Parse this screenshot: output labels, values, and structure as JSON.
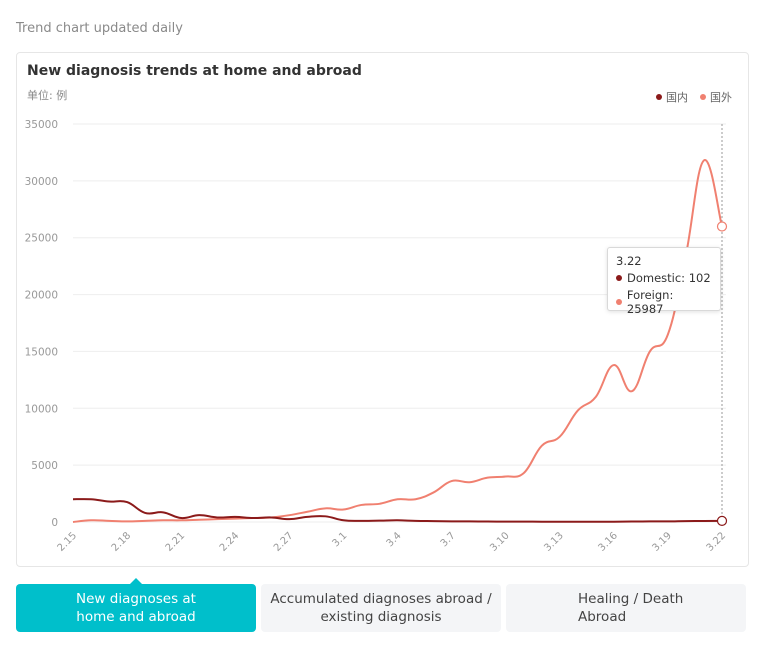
{
  "header": {
    "caption": "Trend chart updated daily"
  },
  "card": {
    "title": "New diagnosis trends at home and abroad",
    "unit": "单位: 例"
  },
  "legend": [
    {
      "label": "国内",
      "color": "#8b1a1a"
    },
    {
      "label": "国外",
      "color": "#f08070"
    }
  ],
  "tooltip": {
    "date": "3.22",
    "domestic_text": "Domestic: 102",
    "foreign_text": "Foreign: 25987",
    "domestic_color": "#8b1a1a",
    "foreign_color": "#f08070"
  },
  "tabs": [
    {
      "label": "New diagnoses at\nhome and abroad",
      "active": true
    },
    {
      "label": "Accumulated diagnoses abroad /\nexisting diagnosis",
      "active": false
    },
    {
      "label": "Healing / Death\nAbroad",
      "active": false
    }
  ],
  "chart_data": {
    "type": "line",
    "title": "New diagnosis trends at home and abroad",
    "ylabel": "单位: 例",
    "ylim": [
      0,
      35000
    ],
    "yticks": [
      0,
      5000,
      10000,
      15000,
      20000,
      25000,
      30000,
      35000
    ],
    "grid": true,
    "legend_position": "top-right",
    "x": [
      "2.15",
      "2.16",
      "2.17",
      "2.18",
      "2.19",
      "2.20",
      "2.21",
      "2.22",
      "2.23",
      "2.24",
      "2.25",
      "2.26",
      "2.27",
      "2.28",
      "2.29",
      "3.1",
      "3.2",
      "3.3",
      "3.4",
      "3.5",
      "3.6",
      "3.7",
      "3.8",
      "3.9",
      "3.10",
      "3.11",
      "3.12",
      "3.13",
      "3.14",
      "3.15",
      "3.16",
      "3.17",
      "3.18",
      "3.19",
      "3.20",
      "3.21",
      "3.22"
    ],
    "xtick_labels": [
      "2.15",
      "2.18",
      "2.21",
      "2.24",
      "2.27",
      "3.1",
      "3.4",
      "3.7",
      "3.10",
      "3.13",
      "3.16",
      "3.19",
      "3.22"
    ],
    "series": [
      {
        "name": "国内",
        "color": "#8b1a1a",
        "values": [
          2000,
          2000,
          1800,
          1750,
          800,
          850,
          350,
          600,
          400,
          450,
          350,
          400,
          250,
          450,
          500,
          150,
          100,
          120,
          150,
          100,
          80,
          60,
          50,
          40,
          30,
          30,
          25,
          20,
          20,
          20,
          25,
          40,
          60,
          50,
          80,
          90,
          102
        ]
      },
      {
        "name": "国外",
        "color": "#f08070",
        "values": [
          0,
          150,
          100,
          50,
          100,
          150,
          150,
          200,
          250,
          300,
          350,
          400,
          600,
          900,
          1200,
          1100,
          1500,
          1600,
          2000,
          2000,
          2600,
          3600,
          3500,
          3900,
          4000,
          4300,
          6700,
          7500,
          9800,
          11000,
          13800,
          11500,
          15000,
          16500,
          23500,
          31800,
          25987
        ]
      }
    ]
  }
}
